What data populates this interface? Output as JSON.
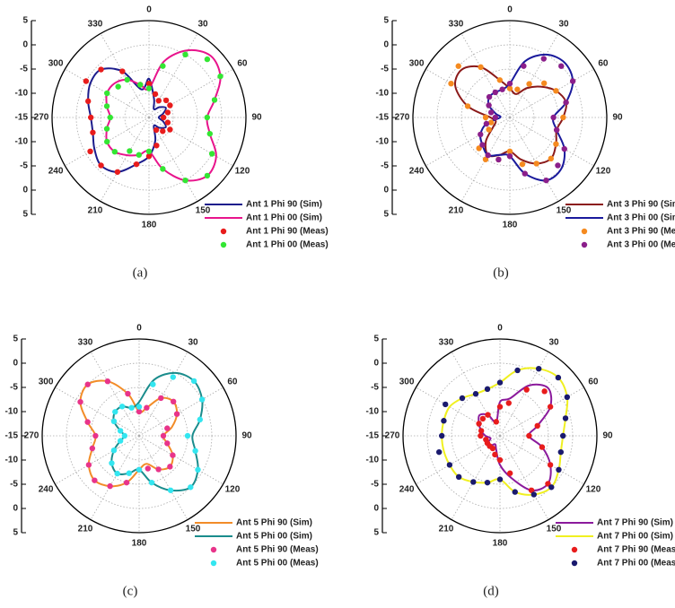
{
  "chart_data": [
    {
      "type": "polar",
      "label": "(a)",
      "rlim": [
        -15,
        5
      ],
      "rticks": [
        -15,
        -10,
        -5,
        0,
        5
      ],
      "angle_ticks": [
        0,
        30,
        60,
        90,
        120,
        150,
        180,
        210,
        240,
        270,
        300,
        330
      ],
      "theta": [
        0,
        15,
        30,
        45,
        60,
        75,
        90,
        105,
        120,
        135,
        150,
        165,
        180,
        195,
        210,
        225,
        240,
        255,
        270,
        285,
        300,
        315,
        330,
        345
      ],
      "series": [
        {
          "name": "Ant 1 Phi 90 (Sim)",
          "color": "#1c1c8c",
          "marker": "line",
          "values": [
            -7,
            -11,
            -13,
            -12,
            -11,
            -12,
            -13,
            -12,
            -11,
            -12,
            -13,
            -10,
            -7,
            -5,
            -2,
            -1,
            -2,
            -3,
            -3,
            -2,
            -1,
            -1,
            -4,
            -9
          ]
        },
        {
          "name": "Ant 1 Phi 00 (Sim)",
          "color": "#e8148c",
          "marker": "line",
          "values": [
            -9,
            -3,
            1,
            3,
            2,
            -1,
            -3,
            -2,
            1,
            2,
            0,
            -4,
            -8,
            -7,
            -6,
            -5,
            -5,
            -6,
            -7,
            -6,
            -5,
            -5,
            -6,
            -8
          ]
        },
        {
          "name": "Ant 1 Phi 90 (Meas)",
          "color": "#e81c1c",
          "marker": "point",
          "values": [
            -8,
            -10,
            -11,
            -10,
            -10,
            -11,
            -12,
            -11,
            -10,
            -11,
            -12,
            -9,
            -7,
            -5,
            -2,
            -1,
            -1,
            -3,
            -3,
            -2,
            0,
            -1,
            -4,
            -8
          ]
        },
        {
          "name": "Ant 1 Phi 00 (Meas)",
          "color": "#33e633",
          "marker": "point",
          "values": [
            -9,
            -4,
            0,
            2,
            2,
            -1,
            -3,
            -2,
            0,
            2,
            0,
            -4,
            -8,
            -7,
            -7,
            -5,
            -5,
            -6,
            -7,
            -6,
            -5,
            -6,
            -6,
            -8
          ]
        }
      ]
    },
    {
      "type": "polar",
      "label": "(b)",
      "rlim": [
        -15,
        5
      ],
      "rticks": [
        -15,
        -10,
        -5,
        0,
        5
      ],
      "angle_ticks": [
        0,
        30,
        60,
        90,
        120,
        150,
        180,
        210,
        240,
        270,
        300,
        330
      ],
      "theta": [
        0,
        15,
        30,
        45,
        60,
        75,
        90,
        105,
        120,
        135,
        150,
        165,
        180,
        195,
        210,
        225,
        240,
        255,
        270,
        285,
        300,
        315,
        330,
        345
      ],
      "series": [
        {
          "name": "Ant 3 Phi 90 (Sim)",
          "color": "#8b1a1a",
          "marker": "line",
          "values": [
            -9,
            -10,
            -8,
            -6,
            -4,
            -3,
            -4,
            -5,
            -4,
            -3,
            -4,
            -6,
            -8,
            -7,
            -6,
            -8,
            -11,
            -12,
            -11,
            -6,
            -2,
            -1,
            -3,
            -7
          ]
        },
        {
          "name": "Ant 3 Phi 00 (Sim)",
          "color": "#1a1a9c",
          "marker": "line",
          "values": [
            -8,
            -3,
            0,
            1,
            0,
            -3,
            -6,
            -5,
            -2,
            0,
            0,
            -3,
            -7,
            -7,
            -6,
            -7,
            -8,
            -10,
            -13,
            -12,
            -10,
            -9,
            -9,
            -9
          ]
        },
        {
          "name": "Ant 3 Phi 90 (Meas)",
          "color": "#f58a1f",
          "marker": "point",
          "values": [
            -9,
            -9,
            -7,
            -5,
            -4,
            -3,
            -4,
            -5,
            -4,
            -3,
            -4,
            -5,
            -8,
            -6,
            -5,
            -6,
            -10,
            -11,
            -10,
            -6,
            -1,
            0,
            -3,
            -7
          ]
        },
        {
          "name": "Ant 3 Phi 00 (Meas)",
          "color": "#8b1f8b",
          "marker": "point",
          "values": [
            -8,
            -4,
            -1,
            0,
            0,
            -3,
            -6,
            -5,
            -2,
            -1,
            0,
            -3,
            -7,
            -6,
            -6,
            -7,
            -8,
            -10,
            -12,
            -11,
            -10,
            -9,
            -9,
            -9
          ]
        }
      ]
    },
    {
      "type": "polar",
      "label": "(c)",
      "rlim": [
        -15,
        5
      ],
      "rticks": [
        -15,
        -10,
        -5,
        0,
        5
      ],
      "angle_ticks": [
        0,
        30,
        60,
        90,
        120,
        150,
        180,
        210,
        240,
        270,
        300,
        330
      ],
      "theta": [
        0,
        15,
        30,
        45,
        60,
        75,
        90,
        105,
        120,
        135,
        150,
        165,
        180,
        195,
        210,
        225,
        240,
        255,
        270,
        285,
        300,
        315,
        330,
        345
      ],
      "series": [
        {
          "name": "Ant 5 Phi 90 (Sim)",
          "color": "#f28c28",
          "marker": "line",
          "values": [
            -10,
            -9,
            -6,
            -5,
            -6,
            -8,
            -10,
            -9,
            -7,
            -6,
            -7,
            -9,
            -8,
            -5,
            -3,
            -2,
            -3,
            -5,
            -6,
            -4,
            -1,
            0,
            -2,
            -6
          ]
        },
        {
          "name": "Ant 5 Phi 00 (Sim)",
          "color": "#1a8c8c",
          "marker": "line",
          "values": [
            -8,
            -3,
            0,
            1,
            0,
            -2,
            -4,
            -3,
            -1,
            0,
            -2,
            -5,
            -8,
            -7,
            -6,
            -7,
            -9,
            -11,
            -12,
            -11,
            -9,
            -8,
            -8,
            -9
          ]
        },
        {
          "name": "Ant 5 Phi 90 (Meas)",
          "color": "#e8348a",
          "marker": "point",
          "values": [
            -10,
            -9,
            -6,
            -5,
            -6,
            -9,
            -10,
            -9,
            -7,
            -6,
            -7,
            -8,
            -8,
            -5,
            -3,
            -2,
            -3,
            -5,
            -6,
            -4,
            -1,
            0,
            -2,
            -6
          ]
        },
        {
          "name": "Ant 5 Phi 00 (Meas)",
          "color": "#33e6f0",
          "marker": "point",
          "values": [
            -9,
            -4,
            -1,
            1,
            0,
            -2,
            -5,
            -3,
            -1,
            0,
            -2,
            -5,
            -8,
            -7,
            -6,
            -7,
            -9,
            -11,
            -12,
            -11,
            -9,
            -8,
            -8,
            -9
          ]
        }
      ]
    },
    {
      "type": "polar",
      "label": "(d)",
      "rlim": [
        -15,
        5
      ],
      "rticks": [
        -15,
        -10,
        -5,
        0,
        5
      ],
      "angle_ticks": [
        0,
        30,
        60,
        90,
        120,
        150,
        180,
        210,
        240,
        270,
        300,
        330
      ],
      "theta": [
        0,
        15,
        30,
        45,
        60,
        75,
        90,
        105,
        120,
        135,
        150,
        165,
        180,
        195,
        210,
        225,
        240,
        255,
        270,
        285,
        300,
        315,
        330,
        345
      ],
      "series": [
        {
          "name": "Ant 7 Phi 90 (Sim)",
          "color": "#8b1a9c",
          "marker": "line",
          "values": [
            -8,
            -7,
            -3,
            -1,
            -3,
            -7,
            -9,
            -6,
            -3,
            -1,
            -2,
            -6,
            -9,
            -12,
            -13,
            -12,
            -12,
            -13,
            -12,
            -11,
            -10,
            -9,
            -10,
            -12
          ]
        },
        {
          "name": "Ant 7 Phi 00 (Sim)",
          "color": "#f0f020",
          "marker": "line",
          "values": [
            -4,
            -1,
            1,
            2,
            1,
            -1,
            -2,
            -2,
            -1,
            0,
            -1,
            -3,
            -6,
            -5,
            -4,
            -3,
            -3,
            -3,
            -3,
            -3,
            -3,
            -4,
            -5,
            -5
          ]
        },
        {
          "name": "Ant 7 Phi 90 (Meas)",
          "color": "#e81c1c",
          "marker": "point",
          "values": [
            -9,
            -8,
            -4,
            -2,
            -3,
            -7,
            -9,
            -6,
            -3,
            -1,
            -2,
            -7,
            -10,
            -11,
            -12,
            -12,
            -12,
            -12,
            -11,
            -11,
            -10,
            -10,
            -10,
            -12
          ]
        },
        {
          "name": "Ant 7 Phi 00 (Meas)",
          "color": "#1a1a6e",
          "marker": "point",
          "values": [
            -4,
            -1,
            1,
            2,
            1,
            -1,
            -2,
            -2,
            -1,
            0,
            -1,
            -3,
            -6,
            -5,
            -4,
            -3,
            -3,
            -2,
            -3,
            -3,
            -2,
            -4,
            -5,
            -5
          ]
        }
      ]
    }
  ]
}
